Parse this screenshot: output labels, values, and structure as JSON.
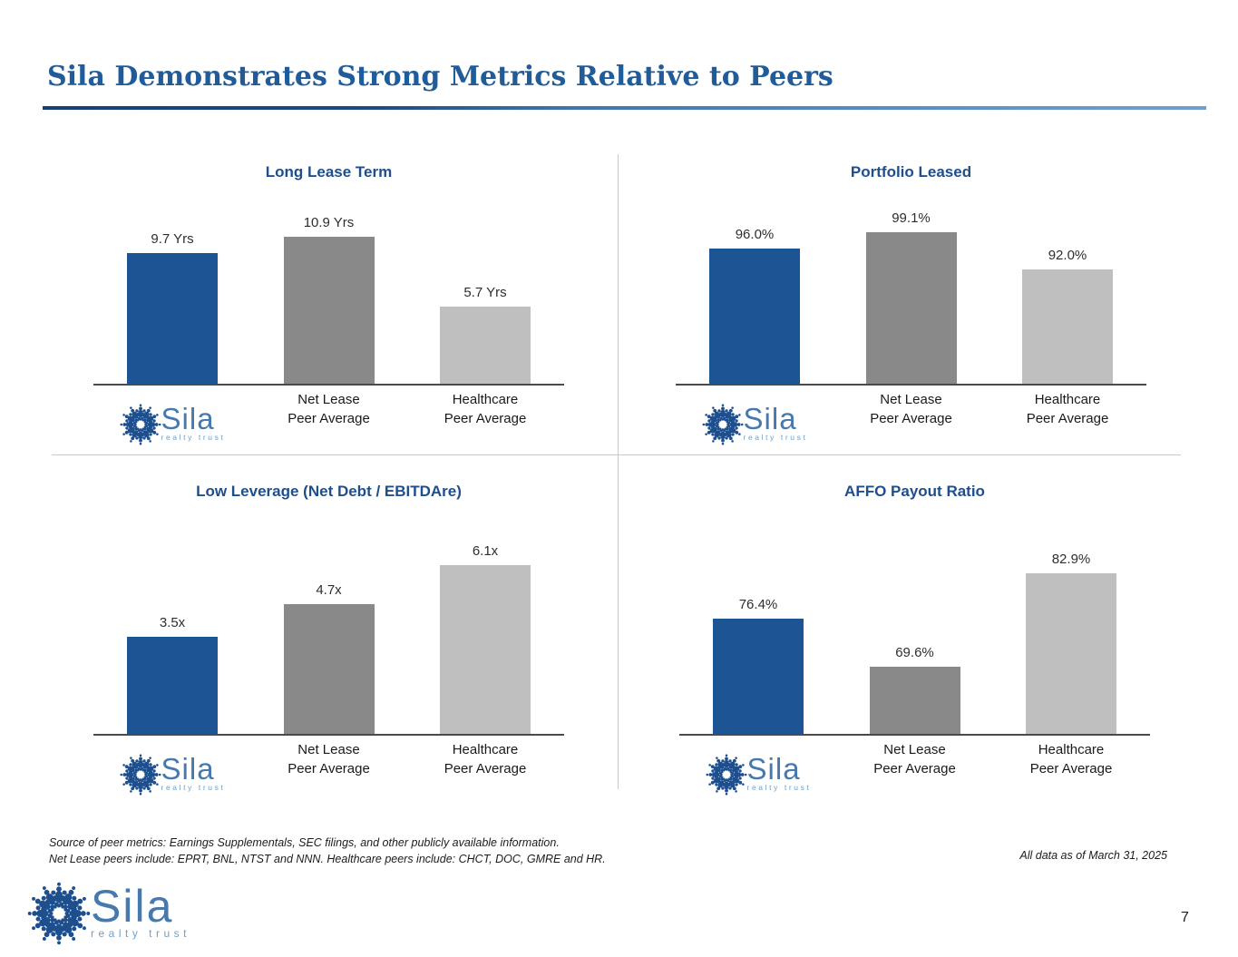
{
  "slide": {
    "title": "Sila Demonstrates Strong Metrics Relative to Peers",
    "page_number": "7",
    "footnote_line1": "Source of peer metrics: Earnings Supplementals, SEC filings, and other publicly available information.",
    "footnote_line2": "Net Lease peers include: EPRT, BNL, NTST and NNN. Healthcare peers include: CHCT, DOC, GMRE and HR.",
    "as_of": "All data as of March 31, 2025"
  },
  "logo": {
    "name": "Sila",
    "tagline": "realty trust"
  },
  "colors": {
    "title_blue": "#1f5c99",
    "chart_title_blue": "#1f4e8c",
    "sila_blue": "#1d5493",
    "net_lease_gray": "#898989",
    "healthcare_gray": "#bfbfbf",
    "axis_line": "#4a4a4a"
  },
  "chart_data": [
    {
      "type": "bar",
      "title": "Long Lease Term",
      "categories": [
        "Sila",
        "Net Lease\nPeer Average",
        "Healthcare\nPeer Average"
      ],
      "values": [
        9.7,
        10.9,
        5.7
      ],
      "labels": [
        "9.7 Yrs",
        "10.9 Yrs",
        "5.7 Yrs"
      ],
      "unit": "Yrs",
      "ylim": [
        0,
        13.1
      ],
      "grid": false,
      "legend": "none"
    },
    {
      "type": "bar",
      "title": "Portfolio Leased",
      "categories": [
        "Sila",
        "Net Lease\nPeer Average",
        "Healthcare\nPeer Average"
      ],
      "values": [
        96.0,
        99.1,
        92.0
      ],
      "labels": [
        "96.0%",
        "99.1%",
        "92.0%"
      ],
      "unit": "%",
      "ylim": [
        70,
        104
      ],
      "grid": false,
      "legend": "none"
    },
    {
      "type": "bar",
      "title": "Low Leverage (Net Debt / EBITDAre)",
      "categories": [
        "Sila",
        "Net Lease\nPeer Average",
        "Healthcare\nPeer Average"
      ],
      "values": [
        3.5,
        4.7,
        6.1
      ],
      "labels": [
        "3.5x",
        "4.7x",
        "6.1x"
      ],
      "unit": "x",
      "ylim": [
        0,
        6.4
      ],
      "grid": false,
      "legend": "none"
    },
    {
      "type": "bar",
      "title": "AFFO Payout Ratio",
      "categories": [
        "Sila",
        "Net Lease\nPeer Average",
        "Healthcare\nPeer Average"
      ],
      "values": [
        76.4,
        69.6,
        82.9
      ],
      "labels": [
        "76.4%",
        "69.6%",
        "82.9%"
      ],
      "unit": "%",
      "ylim": [
        60,
        85.2
      ],
      "grid": false,
      "legend": "none"
    }
  ]
}
